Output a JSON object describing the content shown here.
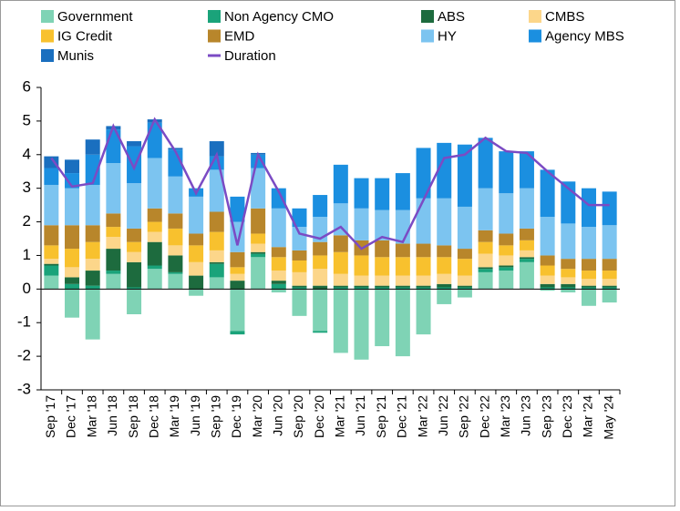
{
  "chart_data": {
    "type": "bar",
    "stacked": true,
    "categories": [
      "Sep '17",
      "Dec '17",
      "Mar '18",
      "Jun '18",
      "Sep '18",
      "Dec '18",
      "Mar '19",
      "Jun '19",
      "Sep '19",
      "Dec '19",
      "Mar '20",
      "Jun '20",
      "Sep '20",
      "Dec '20",
      "Mar '21",
      "Jun '21",
      "Sep '21",
      "Dec '21",
      "Mar '22",
      "Jun '22",
      "Sep '22",
      "Dec '22",
      "Mar '23",
      "Jun '23",
      "Sep '23",
      "Dec '23",
      "Mar '24",
      "May '24"
    ],
    "ylim": [
      -3,
      6
    ],
    "yticks": [
      -3,
      -2,
      -1,
      0,
      1,
      2,
      3,
      4,
      5,
      6
    ],
    "series": [
      {
        "name": "Government",
        "color": "#7fd3b5",
        "values": [
          0.4,
          -0.85,
          -1.5,
          0.45,
          -0.75,
          0.6,
          0.45,
          -0.2,
          0.35,
          -1.25,
          0.95,
          -0.1,
          -0.8,
          -1.25,
          -1.9,
          -2.1,
          -1.7,
          -2.0,
          -1.35,
          -0.45,
          -0.25,
          0.5,
          0.55,
          0.8,
          -0.05,
          -0.1,
          -0.5,
          -0.4
        ]
      },
      {
        "name": "Non Agency CMO",
        "color": "#1aa37a",
        "values": [
          0.3,
          0.15,
          0.1,
          0.1,
          0.05,
          0.1,
          0.05,
          0,
          0.4,
          -0.1,
          0.1,
          0.15,
          0.05,
          -0.05,
          0.05,
          0.05,
          0.05,
          0.05,
          0.05,
          0.05,
          0.05,
          0.1,
          0.1,
          0.1,
          0.05,
          0.05,
          0.05,
          0.05
        ]
      },
      {
        "name": "ABS",
        "color": "#1d6b3e",
        "values": [
          0.05,
          0.2,
          0.45,
          0.65,
          0.75,
          0.7,
          0.5,
          0.4,
          0.05,
          0.25,
          0.05,
          0.1,
          0.05,
          0.1,
          0.05,
          0.05,
          0.05,
          0.05,
          0.05,
          0.1,
          0.05,
          0.05,
          0.05,
          0.05,
          0.1,
          0.1,
          0.05,
          0.05
        ]
      },
      {
        "name": "CMBS",
        "color": "#fcd68a",
        "values": [
          0.15,
          0.3,
          0.35,
          0.35,
          0.3,
          0.3,
          0.3,
          0.4,
          0.35,
          0.2,
          0.25,
          0.3,
          0.4,
          0.5,
          0.35,
          0.3,
          0.3,
          0.3,
          0.3,
          0.3,
          0.3,
          0.4,
          0.3,
          0.2,
          0.25,
          0.2,
          0.2,
          0.2
        ]
      },
      {
        "name": "IG Credit",
        "color": "#f8c12e",
        "values": [
          0.4,
          0.55,
          0.5,
          0.3,
          0.3,
          0.3,
          0.5,
          0.5,
          0.55,
          0.2,
          0.3,
          0.4,
          0.35,
          0.4,
          0.65,
          0.6,
          0.55,
          0.55,
          0.55,
          0.5,
          0.5,
          0.35,
          0.3,
          0.3,
          0.3,
          0.25,
          0.25,
          0.25
        ]
      },
      {
        "name": "EMD",
        "color": "#b8862b",
        "values": [
          0.6,
          0.7,
          0.5,
          0.4,
          0.4,
          0.4,
          0.45,
          0.35,
          0.6,
          0.45,
          0.75,
          0.3,
          0.3,
          0.4,
          0.5,
          0.45,
          0.5,
          0.4,
          0.4,
          0.35,
          0.3,
          0.35,
          0.35,
          0.35,
          0.3,
          0.3,
          0.35,
          0.35
        ]
      },
      {
        "name": "HY",
        "color": "#7cc4f0",
        "values": [
          1.2,
          1.1,
          1.2,
          1.5,
          1.35,
          1.5,
          1.1,
          1.1,
          1.25,
          0.9,
          1.2,
          1.15,
          0.7,
          0.75,
          0.95,
          0.95,
          0.9,
          1.0,
          1.35,
          1.4,
          1.25,
          1.25,
          1.2,
          1.2,
          1.15,
          1.05,
          0.95,
          1.0
        ]
      },
      {
        "name": "Agency MBS",
        "color": "#1b8fe0",
        "values": [
          0.5,
          0.45,
          0.9,
          1.0,
          1.1,
          1.05,
          0.8,
          0.25,
          0.4,
          0.75,
          0.4,
          0.6,
          0.55,
          0.65,
          1.15,
          0.9,
          0.95,
          1.1,
          1.5,
          1.65,
          1.85,
          1.5,
          1.25,
          1.1,
          1.4,
          1.25,
          1.15,
          1.0
        ]
      },
      {
        "name": "Munis",
        "color": "#1a6fbf",
        "values": [
          0.35,
          0.4,
          0.45,
          0.1,
          0.15,
          0.1,
          0.05,
          0,
          0.45,
          0,
          0.05,
          0,
          0,
          0,
          0,
          0,
          0,
          0,
          0,
          0,
          0,
          0,
          0,
          0,
          0,
          0,
          0,
          0
        ]
      },
      {
        "name": "Duration",
        "type": "line",
        "color": "#7b4bc4",
        "values": [
          3.9,
          3.05,
          3.15,
          4.85,
          3.6,
          5.05,
          4.1,
          2.85,
          4.0,
          1.3,
          4.0,
          2.9,
          1.65,
          1.5,
          1.85,
          1.2,
          1.55,
          1.4,
          2.65,
          3.9,
          4.0,
          4.5,
          4.1,
          4.05,
          3.5,
          3.0,
          2.5,
          2.5
        ]
      }
    ]
  }
}
